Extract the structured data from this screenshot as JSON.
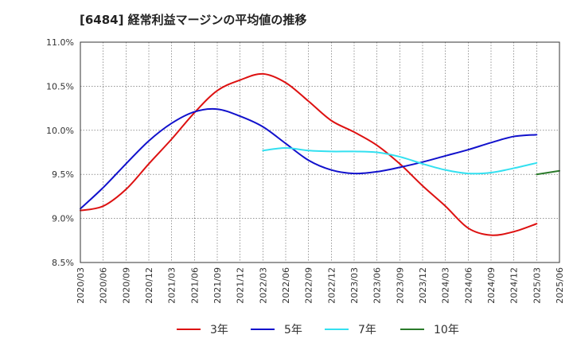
{
  "chart_data": {
    "type": "line",
    "title": "[6484]  経常利益マージンの平均値の推移",
    "xlabel": "",
    "ylabel": "",
    "ylim": [
      8.5,
      11.0
    ],
    "grid": true,
    "legend_position": "bottom",
    "y_ticks": [
      "11.0%",
      "10.5%",
      "10.0%",
      "9.5%",
      "9.0%",
      "8.5%"
    ],
    "x_ticks": [
      "2020/03",
      "2020/06",
      "2020/09",
      "2020/12",
      "2021/03",
      "2021/06",
      "2021/09",
      "2021/12",
      "2022/03",
      "2022/06",
      "2022/09",
      "2022/12",
      "2023/03",
      "2023/06",
      "2023/09",
      "2023/12",
      "2024/03",
      "2024/06",
      "2024/09",
      "2024/12",
      "2025/03",
      "2025/06"
    ],
    "series": [
      {
        "name": "3年",
        "color": "#dd1111",
        "start_index": 0,
        "values": [
          9.09,
          9.14,
          9.33,
          9.62,
          9.9,
          10.2,
          10.45,
          10.57,
          10.64,
          10.54,
          10.33,
          10.11,
          9.98,
          9.83,
          9.62,
          9.37,
          9.14,
          8.89,
          8.81,
          8.85,
          8.94
        ]
      },
      {
        "name": "5年",
        "color": "#1111cc",
        "start_index": 0,
        "values": [
          9.11,
          9.35,
          9.62,
          9.88,
          10.08,
          10.21,
          10.24,
          10.16,
          10.04,
          9.85,
          9.66,
          9.55,
          9.51,
          9.53,
          9.58,
          9.64,
          9.71,
          9.78,
          9.86,
          9.93,
          9.95
        ]
      },
      {
        "name": "7年",
        "color": "#33e0f0",
        "start_index": 8,
        "values": [
          9.77,
          9.8,
          9.77,
          9.76,
          9.76,
          9.75,
          9.7,
          9.62,
          9.55,
          9.51,
          9.52,
          9.57,
          9.63
        ]
      },
      {
        "name": "10年",
        "color": "#2a7a2a",
        "start_index": 20,
        "values": [
          9.5,
          9.54
        ]
      }
    ]
  }
}
